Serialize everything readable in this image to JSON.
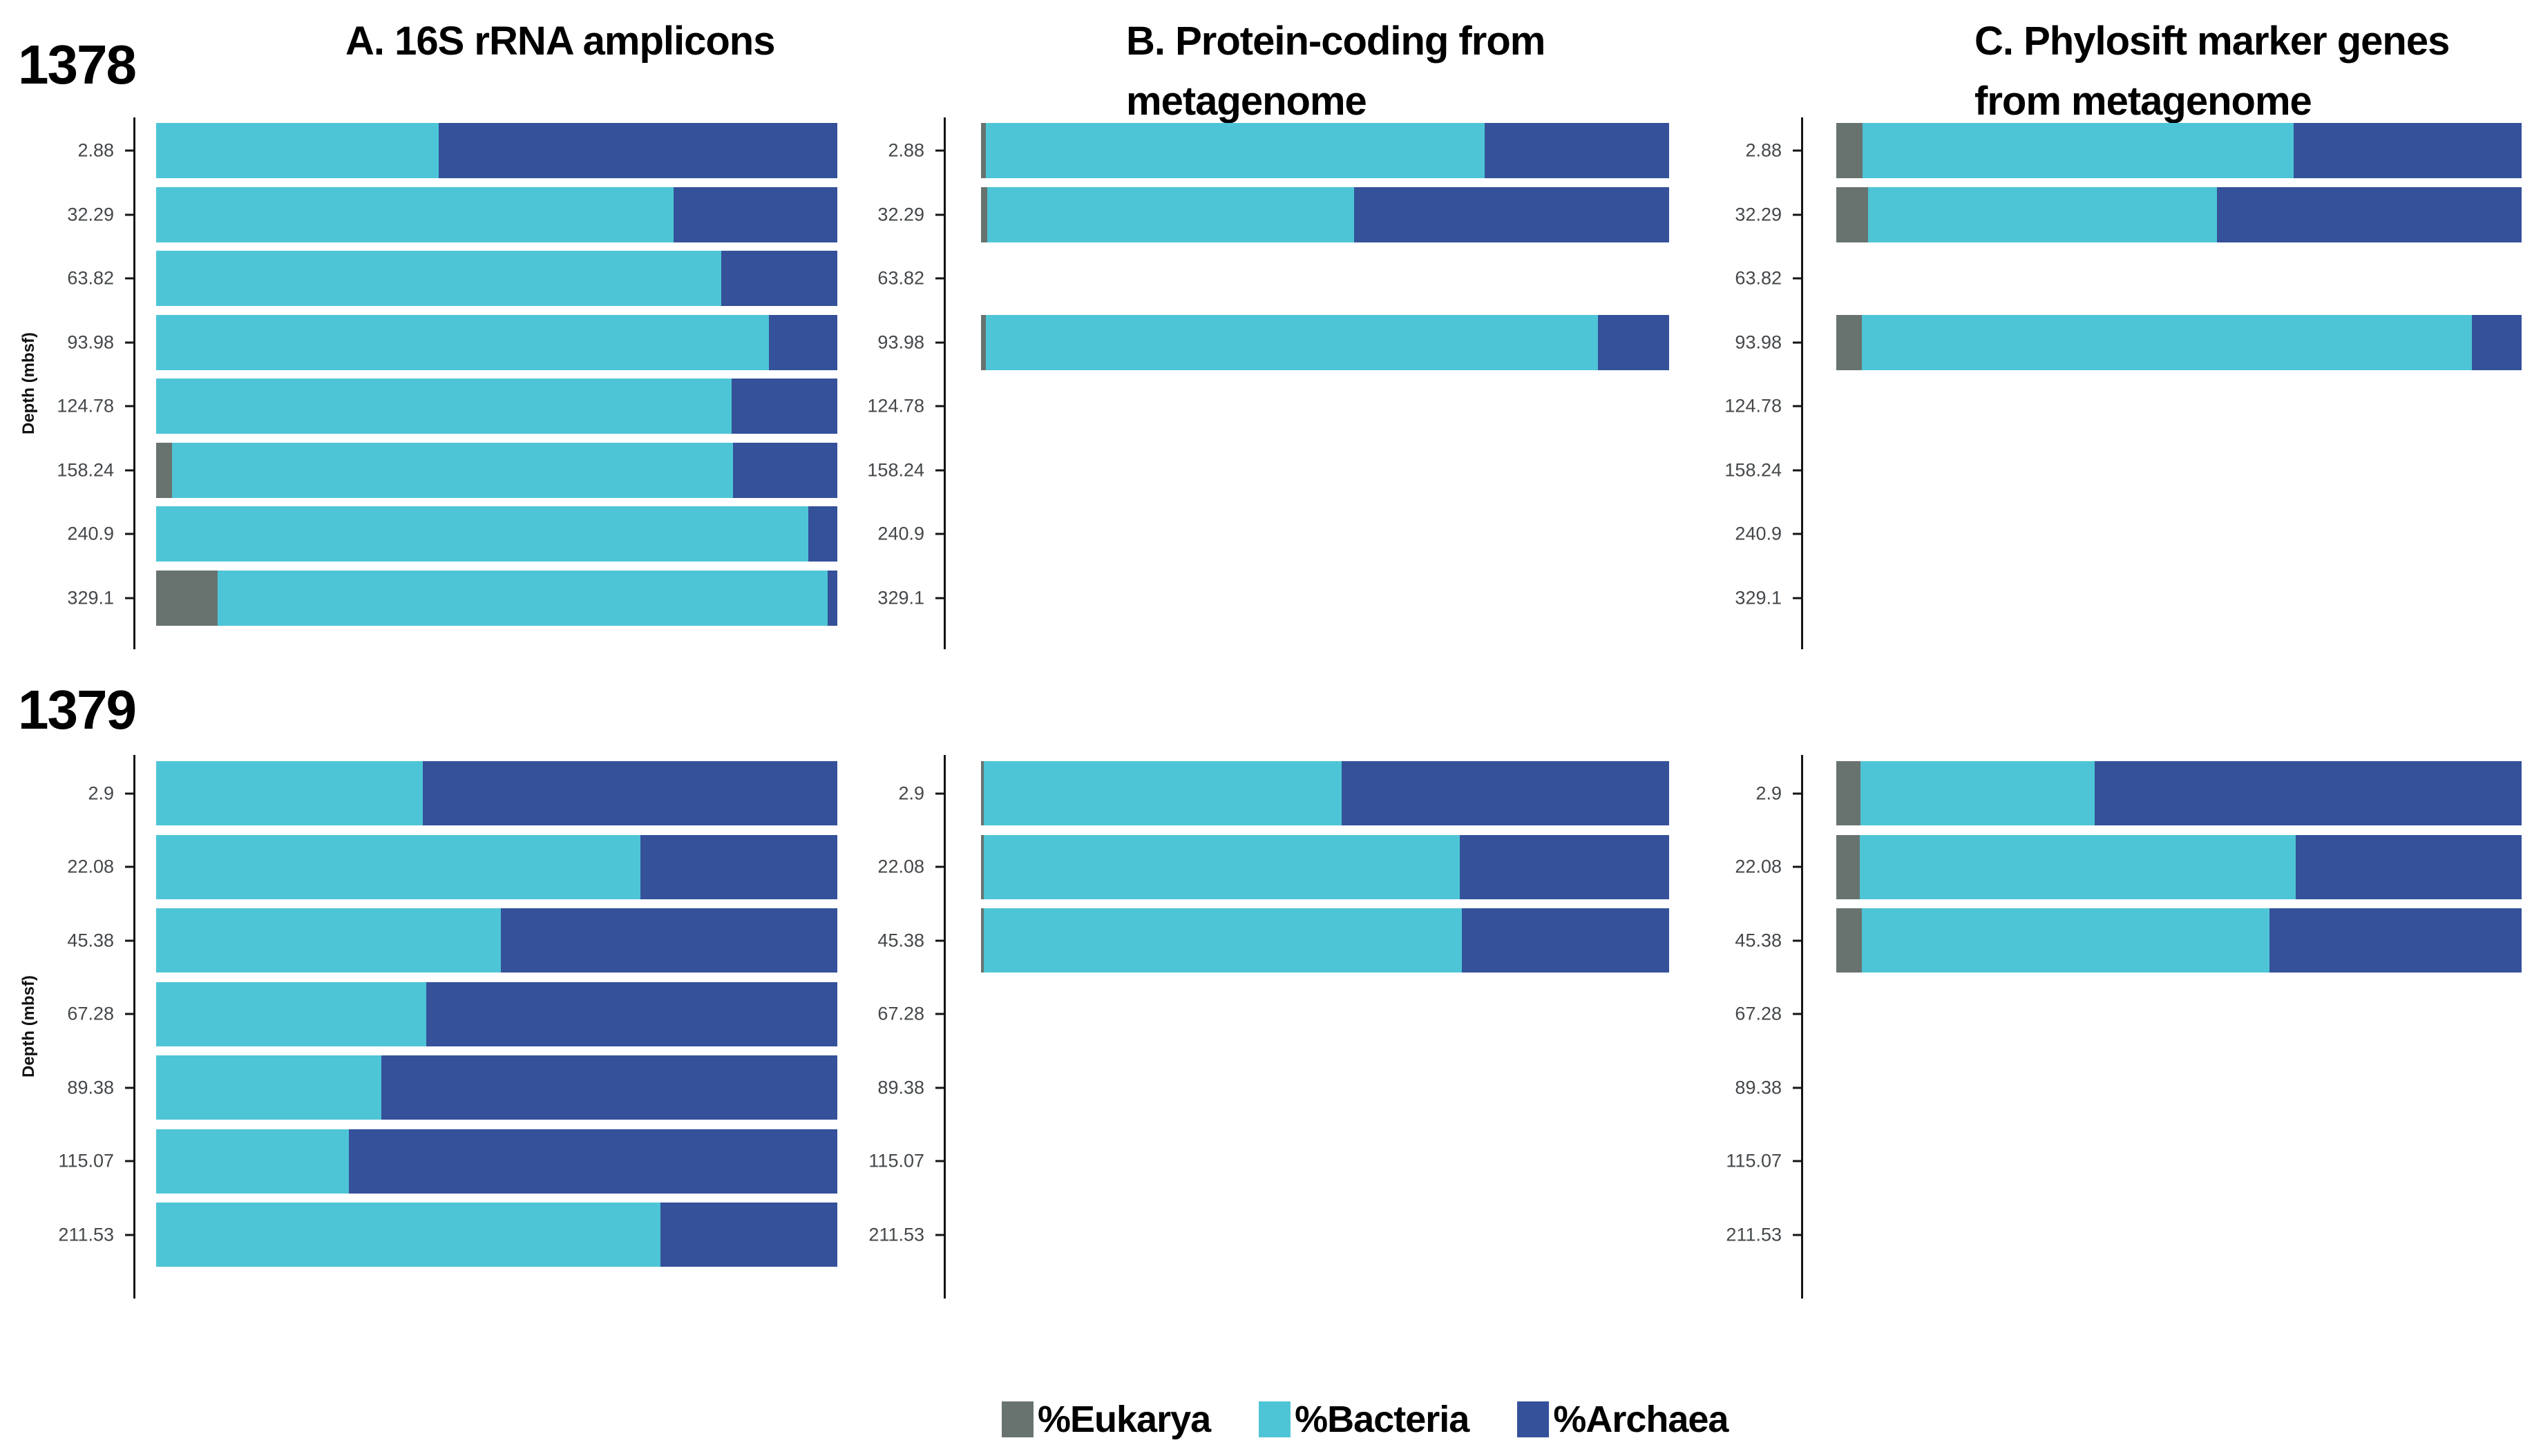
{
  "figure": {
    "titles": {
      "a": "A. 16S rRNA amplicons",
      "b": "B. Protein-coding from\nmetagenome",
      "c": "C. Phylosift marker genes\nfrom metagenome"
    },
    "site_labels": [
      "1378",
      "1379"
    ],
    "y_axis_label": "Depth (mbsf)",
    "legend": [
      {
        "label": "%Eukarya",
        "color": "#68736f"
      },
      {
        "label": "%Bacteria",
        "color": "#4ec5d6"
      },
      {
        "label": "%Archaea",
        "color": "#35519a"
      }
    ]
  },
  "chart_data": [
    {
      "type": "bar",
      "orientation": "horizontal",
      "stacked": true,
      "units": "percent",
      "site": "1378",
      "panel": "A. 16S rRNA amplicons",
      "ylabel": "Depth (mbsf)",
      "xlim": [
        0,
        100
      ],
      "grid": false,
      "categories": [
        "2.88",
        "32.29",
        "63.82",
        "93.98",
        "124.78",
        "158.24",
        "240.9",
        "329.1"
      ],
      "series": [
        {
          "name": "%Eukarya",
          "values": [
            0,
            0,
            0,
            0,
            0,
            2.3,
            0,
            9
          ]
        },
        {
          "name": "%Bacteria",
          "values": [
            41.5,
            76,
            83,
            90,
            84.5,
            82.4,
            95.7,
            89.6
          ]
        },
        {
          "name": "%Archaea",
          "values": [
            58.5,
            24,
            17,
            10,
            15.5,
            15.3,
            4.3,
            1.4
          ]
        }
      ]
    },
    {
      "type": "bar",
      "orientation": "horizontal",
      "stacked": true,
      "units": "percent",
      "site": "1378",
      "panel": "B. Protein-coding from metagenome",
      "ylabel": "Depth (mbsf)",
      "xlim": [
        0,
        100
      ],
      "grid": false,
      "categories": [
        "2.88",
        "32.29",
        "63.82",
        "93.98",
        "124.78",
        "158.24",
        "240.9",
        "329.1"
      ],
      "series": [
        {
          "name": "%Eukarya",
          "values": [
            0.7,
            0.9,
            null,
            0.7,
            null,
            null,
            null,
            null
          ]
        },
        {
          "name": "%Bacteria",
          "values": [
            72.5,
            53.3,
            null,
            89,
            null,
            null,
            null,
            null
          ]
        },
        {
          "name": "%Archaea",
          "values": [
            26.8,
            45.8,
            null,
            10.3,
            null,
            null,
            null,
            null
          ]
        }
      ]
    },
    {
      "type": "bar",
      "orientation": "horizontal",
      "stacked": true,
      "units": "percent",
      "site": "1378",
      "panel": "C. Phylosift marker genes from metagenome",
      "ylabel": "Depth (mbsf)",
      "xlim": [
        0,
        100
      ],
      "grid": false,
      "categories": [
        "2.88",
        "32.29",
        "63.82",
        "93.98",
        "124.78",
        "158.24",
        "240.9",
        "329.1"
      ],
      "series": [
        {
          "name": "%Eukarya",
          "values": [
            3.8,
            4.6,
            null,
            3.7,
            null,
            null,
            null,
            null
          ]
        },
        {
          "name": "%Bacteria",
          "values": [
            62.9,
            50.9,
            null,
            89,
            null,
            null,
            null,
            null
          ]
        },
        {
          "name": "%Archaea",
          "values": [
            33.3,
            44.5,
            null,
            7.3,
            null,
            null,
            null,
            null
          ]
        }
      ]
    },
    {
      "type": "bar",
      "orientation": "horizontal",
      "stacked": true,
      "units": "percent",
      "site": "1379",
      "panel": "A. 16S rRNA amplicons",
      "ylabel": "Depth (mbsf)",
      "xlim": [
        0,
        100
      ],
      "grid": false,
      "categories": [
        "2.9",
        "22.08",
        "45.38",
        "67.28",
        "89.38",
        "115.07",
        "211.53"
      ],
      "series": [
        {
          "name": "%Eukarya",
          "values": [
            0,
            0,
            0,
            0,
            0,
            0,
            0
          ]
        },
        {
          "name": "%Bacteria",
          "values": [
            39.1,
            71.1,
            50.6,
            39.7,
            33.1,
            28.3,
            74
          ]
        },
        {
          "name": "%Archaea",
          "values": [
            60.9,
            28.9,
            49.4,
            60.3,
            66.9,
            71.7,
            26
          ]
        }
      ]
    },
    {
      "type": "bar",
      "orientation": "horizontal",
      "stacked": true,
      "units": "percent",
      "site": "1379",
      "panel": "B. Protein-coding from metagenome",
      "ylabel": "Depth (mbsf)",
      "xlim": [
        0,
        100
      ],
      "grid": false,
      "categories": [
        "2.9",
        "22.08",
        "45.38",
        "67.28",
        "89.38",
        "115.07",
        "211.53"
      ],
      "series": [
        {
          "name": "%Eukarya",
          "values": [
            0.4,
            0.4,
            0.4,
            null,
            null,
            null,
            null
          ]
        },
        {
          "name": "%Bacteria",
          "values": [
            52,
            69.2,
            69.5,
            null,
            null,
            null,
            null
          ]
        },
        {
          "name": "%Archaea",
          "values": [
            47.6,
            30.4,
            30.1,
            null,
            null,
            null,
            null
          ]
        }
      ]
    },
    {
      "type": "bar",
      "orientation": "horizontal",
      "stacked": true,
      "units": "percent",
      "site": "1379",
      "panel": "C. Phylosift marker genes from metagenome",
      "ylabel": "Depth (mbsf)",
      "xlim": [
        0,
        100
      ],
      "grid": false,
      "categories": [
        "2.9",
        "22.08",
        "45.38",
        "67.28",
        "89.38",
        "115.07",
        "211.53"
      ],
      "series": [
        {
          "name": "%Eukarya",
          "values": [
            3.5,
            3.4,
            3.7,
            null,
            null,
            null,
            null
          ]
        },
        {
          "name": "%Bacteria",
          "values": [
            34.2,
            63.6,
            59.5,
            null,
            null,
            null,
            null
          ]
        },
        {
          "name": "%Archaea",
          "values": [
            62.3,
            33,
            36.8,
            null,
            null,
            null,
            null
          ]
        }
      ]
    }
  ]
}
